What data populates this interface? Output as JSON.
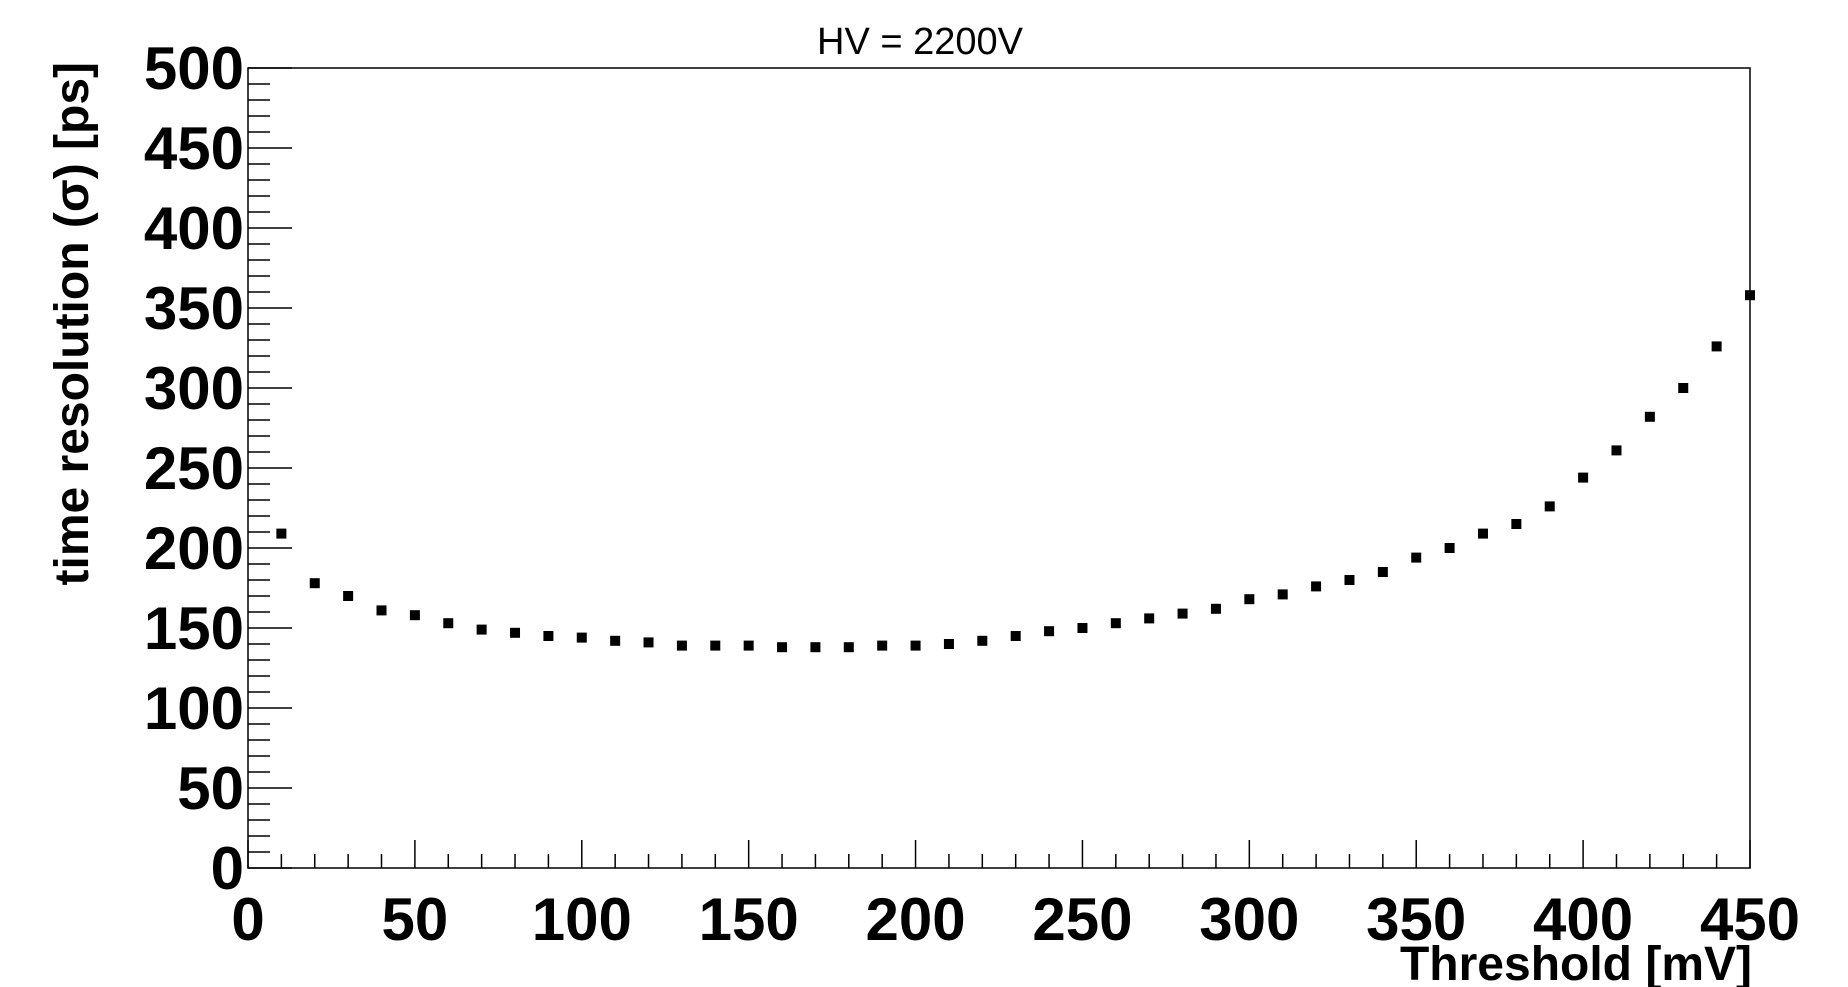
{
  "chart_data": {
    "type": "scatter",
    "title": "HV = 2200V",
    "xlabel": "Threshold [mV]",
    "ylabel": "time resolution  (σ) [ps]",
    "xlim": [
      0,
      450
    ],
    "ylim": [
      0,
      500
    ],
    "x_ticks": [
      0,
      50,
      100,
      150,
      200,
      250,
      300,
      350,
      400,
      450
    ],
    "y_ticks": [
      0,
      50,
      100,
      150,
      200,
      250,
      300,
      350,
      400,
      450,
      500
    ],
    "grid": false,
    "legend": "none",
    "marker": "square",
    "color": "#000000",
    "series": [
      {
        "x": [
          10,
          20,
          30,
          40,
          50,
          60,
          70,
          80,
          90,
          100,
          110,
          120,
          130,
          140,
          150,
          160,
          170,
          180,
          190,
          200,
          210,
          220,
          230,
          240,
          250,
          260,
          270,
          280,
          290,
          300,
          310,
          320,
          330,
          340,
          350,
          360,
          370,
          380,
          390,
          400,
          410,
          420,
          430,
          440,
          450
        ],
        "y": [
          209,
          178,
          170,
          161,
          158,
          153,
          149,
          147,
          145,
          144,
          142,
          141,
          139,
          139,
          139,
          138,
          138,
          138,
          139,
          139,
          140,
          142,
          145,
          148,
          150,
          153,
          156,
          159,
          162,
          168,
          171,
          176,
          180,
          185,
          194,
          200,
          209,
          215,
          226,
          244,
          261,
          282,
          300,
          326,
          358
        ]
      }
    ]
  }
}
